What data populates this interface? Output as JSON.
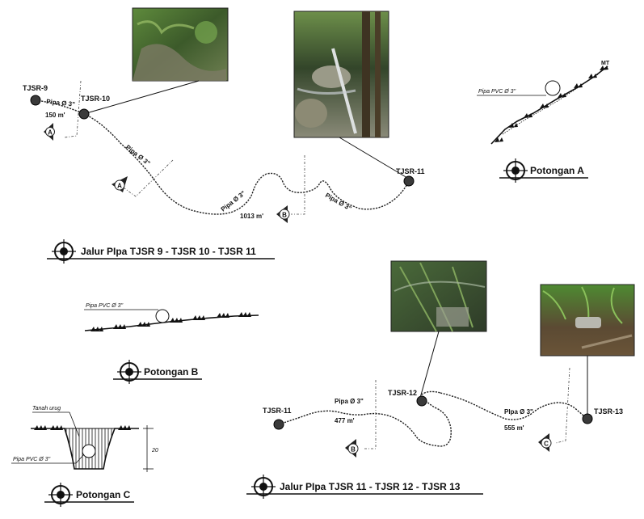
{
  "plan1": {
    "nodes": {
      "tjsr9": "TJSR-9",
      "tjsr10": "TJSR-10",
      "tjsr11": "TJSR-11"
    },
    "pipe_labels": {
      "a": "Pipa Ø 3\"",
      "b": "Pipa Ø 3\"",
      "c": "Pipa Ø 3\"",
      "d": "Pipa Ø 3\""
    },
    "lengths": {
      "a": "150 m'",
      "b": "1013 m'"
    },
    "section_markers": {
      "a1": "A",
      "a2": "A",
      "b": "B"
    },
    "title": "Jalur PIpa TJSR 9 - TJSR 10 - TJSR 11"
  },
  "section_a": {
    "pipe_label": "Pipa PVC Ø 3\"",
    "mt_label": "MT",
    "title": "Potongan A"
  },
  "section_b": {
    "pipe_label": "Pipa PVC Ø 3\"",
    "title": "Potongan B"
  },
  "section_c": {
    "fill_label": "Tanah urug",
    "pipe_label": "Pipa PVC Ø 3\"",
    "depth": "20",
    "title": "Potongan C"
  },
  "plan2": {
    "nodes": {
      "tjsr11": "TJSR-11",
      "tjsr12": "TJSR-12",
      "tjsr13": "TJSR-13"
    },
    "pipe_labels": {
      "a": "Pipa Ø 3\"",
      "b": "PIpa Ø 3\""
    },
    "lengths": {
      "a": "477 m'",
      "b": "555 m'"
    },
    "section_markers": {
      "b": "B",
      "c": "C"
    },
    "title": "Jalur PIpa TJSR 11 - TJSR 12 - TJSR 13"
  },
  "colors": {
    "pipe": "#222222",
    "photo_green": "#4f7a35",
    "photo_dark": "#2d3a22"
  }
}
